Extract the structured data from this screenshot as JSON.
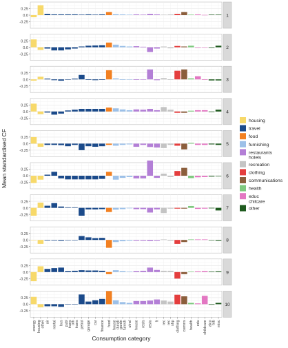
{
  "chart_data": {
    "type": "bar",
    "title": "",
    "xlabel": "Consumption category",
    "ylabel": "Mean standardised CF",
    "ylim": [
      -0.5,
      0.5
    ],
    "yticks": [
      -0.25,
      0.0,
      0.25
    ],
    "ytick_labels": [
      "-0.25",
      "0.0",
      "0.25"
    ],
    "grid": true,
    "facet_position": "right-strip",
    "legend_position": "right",
    "colors": {
      "housing": "#f7d96a",
      "travel": "#1b4a8a",
      "food": "#f28021",
      "furnishing": "#9cc0e8",
      "restaurants hotels": "#b37fd6",
      "recreation": "#c4c4c4",
      "clothing": "#e43d3d",
      "communications": "#8b5e3c",
      "health": "#7fc97f",
      "educ chilcare": "#e377c2",
      "other": "#1f5b1f"
    },
    "legend": [
      {
        "key": "housing",
        "label": "housing"
      },
      {
        "key": "travel",
        "label": "travel"
      },
      {
        "key": "food",
        "label": "food"
      },
      {
        "key": "furnishing",
        "label": "furnishing"
      },
      {
        "key": "restaurants hotels",
        "label": "restaurants\nhotels"
      },
      {
        "key": "recreation",
        "label": "recreation"
      },
      {
        "key": "clothing",
        "label": "clothing"
      },
      {
        "key": "communications",
        "label": "communications"
      },
      {
        "key": "health",
        "label": "health"
      },
      {
        "key": "educ chilcare",
        "label": "educ\nchilcare"
      },
      {
        "key": "other",
        "label": "other"
      }
    ],
    "categories": [
      {
        "label": "energy",
        "group": "housing"
      },
      {
        "label": "housing\nother",
        "group": "housing"
      },
      {
        "label": "air",
        "group": "travel"
      },
      {
        "label": "rental",
        "group": "travel"
      },
      {
        "label": "bus",
        "group": "travel"
      },
      {
        "label": "publ\ntrans",
        "group": "travel"
      },
      {
        "label": "oth\ntrans",
        "group": "travel"
      },
      {
        "label": "petrol",
        "group": "travel"
      },
      {
        "label": "garage",
        "group": "travel"
      },
      {
        "label": "car",
        "group": "travel"
      },
      {
        "label": "finance",
        "group": "travel"
      },
      {
        "label": "food",
        "group": "food"
      },
      {
        "label": "house\ndurab",
        "group": "furnishing"
      },
      {
        "label": "gardn\nfurnsh",
        "group": "furnishing"
      },
      {
        "label": "utnsl",
        "group": "furnishing"
      },
      {
        "label": "house",
        "group": "restaurants hotels"
      },
      {
        "label": "rests",
        "group": "restaurants hotels"
      },
      {
        "label": "resto",
        "group": "restaurants hotels"
      },
      {
        "label": "ft",
        "group": "restaurants hotels"
      },
      {
        "label": "rec",
        "group": "recreation"
      },
      {
        "label": "rec\nshp",
        "group": "recreation"
      },
      {
        "label": "clothing",
        "group": "clothing"
      },
      {
        "label": "comms",
        "group": "communications"
      },
      {
        "label": "health",
        "group": "health"
      },
      {
        "label": "edu",
        "group": "educ chilcare"
      },
      {
        "label": "childcare",
        "group": "educ chilcare"
      },
      {
        "label": "alco\ntob",
        "group": "other"
      },
      {
        "label": "misc",
        "group": "other"
      }
    ],
    "panels": [
      {
        "label": "1",
        "values": [
          -0.08,
          0.38,
          0.05,
          0.03,
          0.03,
          0.03,
          0.03,
          0.02,
          0.03,
          0.02,
          0.03,
          0.12,
          0.04,
          0.03,
          0.02,
          0.03,
          0.02,
          0.05,
          0.03,
          0.02,
          0.03,
          0.05,
          0.12,
          0.02,
          0.03,
          0.01,
          0.02,
          0.02
        ]
      },
      {
        "label": "2",
        "values": [
          0.3,
          -0.1,
          -0.05,
          -0.12,
          -0.12,
          -0.08,
          -0.05,
          0.03,
          0.06,
          0.07,
          0.08,
          0.18,
          0.1,
          0.05,
          0.03,
          0.04,
          0.02,
          -0.18,
          -0.05,
          0.03,
          -0.04,
          0.05,
          0.03,
          0.06,
          -0.02,
          -0.01,
          -0.02,
          0.06
        ]
      },
      {
        "label": "3",
        "values": [
          -0.05,
          0.1,
          0.03,
          -0.03,
          -0.05,
          0.0,
          0.03,
          0.17,
          -0.02,
          -0.03,
          -0.02,
          0.35,
          0.04,
          -0.02,
          0.0,
          -0.02,
          0.0,
          0.38,
          -0.03,
          0.05,
          -0.02,
          0.33,
          0.38,
          0.04,
          0.12,
          -0.02,
          -0.04,
          -0.04
        ]
      },
      {
        "label": "4",
        "values": [
          0.3,
          -0.1,
          -0.04,
          -0.12,
          -0.08,
          0.04,
          0.07,
          0.1,
          0.1,
          0.1,
          0.1,
          0.15,
          0.12,
          0.08,
          0.05,
          0.08,
          0.07,
          0.1,
          0.05,
          0.17,
          0.07,
          -0.05,
          -0.05,
          0.03,
          0.05,
          0.05,
          -0.02,
          0.07
        ]
      },
      {
        "label": "5",
        "values": [
          0.25,
          -0.12,
          -0.05,
          -0.05,
          -0.06,
          -0.1,
          -0.05,
          -0.25,
          -0.1,
          -0.12,
          -0.1,
          -0.05,
          -0.08,
          -0.05,
          -0.03,
          -0.12,
          -0.05,
          -0.13,
          -0.15,
          -0.17,
          -0.05,
          -0.08,
          -0.22,
          0.03,
          -0.05,
          -0.05,
          -0.03,
          -0.05
        ]
      },
      {
        "label": "6",
        "values": [
          -0.28,
          -0.15,
          0.04,
          0.15,
          -0.1,
          -0.14,
          -0.14,
          -0.14,
          -0.14,
          -0.14,
          -0.12,
          0.15,
          -0.15,
          -0.08,
          -0.05,
          -0.1,
          -0.1,
          0.58,
          -0.08,
          0.08,
          -0.05,
          0.18,
          0.3,
          -0.09,
          -0.06,
          -0.05,
          -0.03,
          -0.02
        ]
      },
      {
        "label": "7",
        "values": [
          -0.3,
          0.2,
          0.08,
          0.18,
          0.05,
          0.02,
          0.02,
          -0.3,
          -0.06,
          -0.06,
          -0.05,
          -0.16,
          -0.07,
          -0.05,
          -0.02,
          -0.05,
          -0.05,
          -0.18,
          -0.06,
          -0.2,
          -0.03,
          -0.03,
          -0.03,
          0.07,
          -0.04,
          -0.03,
          -0.02,
          -0.1
        ]
      },
      {
        "label": "8",
        "values": [
          0.0,
          -0.15,
          -0.02,
          -0.02,
          -0.03,
          0.0,
          0.0,
          0.15,
          0.1,
          0.07,
          0.08,
          -0.3,
          -0.08,
          -0.05,
          -0.03,
          -0.03,
          -0.03,
          -0.04,
          -0.03,
          0.02,
          -0.03,
          -0.15,
          -0.08,
          0.02,
          0.02,
          0.02,
          0.0,
          -0.03
        ]
      },
      {
        "label": "9",
        "values": [
          -0.35,
          0.22,
          0.12,
          0.15,
          0.17,
          0.04,
          0.05,
          0.07,
          0.06,
          0.06,
          0.05,
          -0.08,
          0.07,
          0.04,
          0.02,
          0.04,
          0.05,
          0.17,
          0.08,
          0.05,
          0.05,
          -0.25,
          -0.08,
          0.02,
          0.03,
          0.04,
          0.02,
          0.03
        ]
      },
      {
        "label": "10",
        "values": [
          0.28,
          -0.12,
          -0.08,
          -0.08,
          -0.1,
          0.0,
          0.0,
          0.37,
          0.1,
          0.15,
          0.2,
          0.5,
          0.15,
          0.08,
          0.05,
          0.12,
          0.12,
          0.14,
          0.18,
          0.14,
          0.1,
          0.36,
          0.3,
          0.05,
          0.03,
          0.32,
          -0.02,
          0.05
        ]
      }
    ]
  }
}
